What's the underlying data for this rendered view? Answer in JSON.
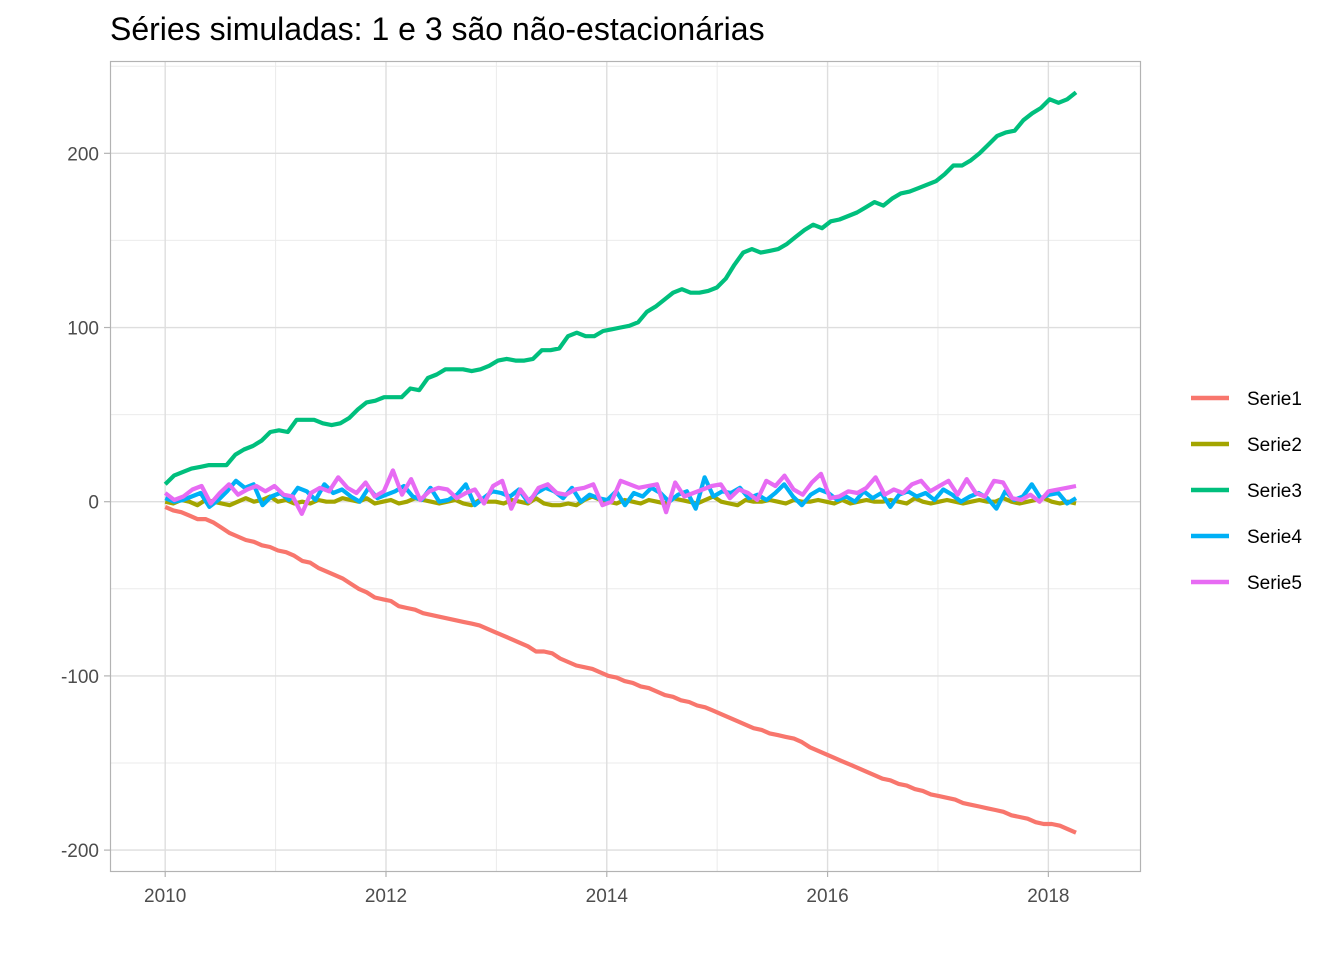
{
  "chart_data": {
    "type": "line",
    "title": "Séries simuladas: 1 e 3 são não-estacionárias",
    "xlabel": "",
    "ylabel": "",
    "x_range": [
      2010.0,
      2018.25
    ],
    "xlim": [
      2009.5,
      2018.83
    ],
    "ylim": [
      -212,
      253
    ],
    "x_ticks": [
      2010,
      2012,
      2014,
      2016,
      2018
    ],
    "x_tick_labels": [
      "2010",
      "2012",
      "2014",
      "2016",
      "2018"
    ],
    "y_ticks": [
      -200,
      -100,
      0,
      100,
      200
    ],
    "y_tick_labels": [
      "-200",
      "-100",
      "0",
      "100",
      "200"
    ],
    "grid": true,
    "legend_position": "right",
    "series": [
      {
        "name": "Serie1",
        "color": "#F8766D",
        "values": [
          -3,
          -5,
          -6,
          -8,
          -10,
          -10,
          -12,
          -15,
          -18,
          -20,
          -22,
          -23,
          -25,
          -26,
          -28,
          -29,
          -31,
          -34,
          -35,
          -38,
          -40,
          -42,
          -44,
          -47,
          -50,
          -52,
          -55,
          -56,
          -57,
          -60,
          -61,
          -62,
          -64,
          -65,
          -66,
          -67,
          -68,
          -69,
          -70,
          -71,
          -73,
          -75,
          -77,
          -79,
          -81,
          -83,
          -86,
          -86,
          -87,
          -90,
          -92,
          -94,
          -95,
          -96,
          -98,
          -100,
          -101,
          -103,
          -104,
          -106,
          -107,
          -109,
          -111,
          -112,
          -114,
          -115,
          -117,
          -118,
          -120,
          -122,
          -124,
          -126,
          -128,
          -130,
          -131,
          -133,
          -134,
          -135,
          -136,
          -138,
          -141,
          -143,
          -145,
          -147,
          -149,
          -151,
          -153,
          -155,
          -157,
          -159,
          -160,
          -162,
          -163,
          -165,
          -166,
          -168,
          -169,
          -170,
          -171,
          -173,
          -174,
          -175,
          -176,
          -177,
          -178,
          -180,
          -181,
          -182,
          -184,
          -185,
          -185,
          -186,
          -188,
          -190
        ]
      },
      {
        "name": "Serie2",
        "color": "#A3A500",
        "values": [
          0,
          -1,
          1,
          0,
          -2,
          1,
          0,
          -1,
          -2,
          0,
          2,
          0,
          1,
          3,
          0,
          1,
          -1,
          0,
          -1,
          1,
          0,
          0,
          2,
          1,
          0,
          2,
          -1,
          0,
          1,
          -1,
          0,
          2,
          1,
          0,
          -1,
          0,
          1,
          -1,
          -2,
          1,
          0,
          0,
          -1,
          1,
          0,
          -1,
          2,
          -1,
          -2,
          -2,
          -1,
          -2,
          1,
          3,
          1,
          0,
          -1,
          1,
          0,
          -1,
          1,
          0,
          -1,
          2,
          1,
          0,
          -1,
          1,
          3,
          0,
          -1,
          -2,
          1,
          0,
          0,
          1,
          0,
          -1,
          1,
          0,
          0,
          1,
          0,
          -1,
          1,
          -1,
          0,
          1,
          0,
          0,
          1,
          0,
          -1,
          2,
          0,
          -1,
          0,
          1,
          0,
          -1,
          0,
          1,
          0,
          0,
          2,
          0,
          -1,
          0,
          1,
          2,
          0,
          -1,
          0,
          -1
        ]
      },
      {
        "name": "Serie3",
        "color": "#00BF7D",
        "values": [
          10,
          15,
          17,
          19,
          20,
          21,
          21,
          21,
          27,
          30,
          32,
          35,
          40,
          41,
          40,
          47,
          47,
          47,
          45,
          44,
          45,
          48,
          53,
          57,
          58,
          60,
          60,
          60,
          65,
          64,
          71,
          73,
          76,
          76,
          76,
          75,
          76,
          78,
          81,
          82,
          81,
          81,
          82,
          87,
          87,
          88,
          95,
          97,
          95,
          95,
          98,
          99,
          100,
          101,
          103,
          109,
          112,
          116,
          120,
          122,
          120,
          120,
          121,
          123,
          128,
          136,
          143,
          145,
          143,
          144,
          145,
          148,
          152,
          156,
          159,
          157,
          161,
          162,
          164,
          166,
          169,
          172,
          170,
          174,
          177,
          178,
          180,
          182,
          184,
          188,
          193,
          193,
          196,
          200,
          205,
          210,
          212,
          213,
          219,
          223,
          226,
          231,
          229,
          231,
          235
        ]
      },
      {
        "name": "Serie4",
        "color": "#00B0F6",
        "values": [
          2,
          0,
          1,
          3,
          5,
          -3,
          1,
          6,
          12,
          8,
          10,
          -2,
          3,
          5,
          1,
          8,
          6,
          1,
          10,
          5,
          7,
          3,
          0,
          8,
          2,
          4,
          6,
          9,
          3,
          1,
          8,
          0,
          1,
          4,
          10,
          -2,
          2,
          6,
          5,
          3,
          7,
          0,
          5,
          8,
          6,
          2,
          8,
          0,
          4,
          2,
          1,
          6,
          -2,
          5,
          3,
          8,
          5,
          0,
          4,
          6,
          -4,
          14,
          3,
          6,
          5,
          8,
          2,
          4,
          1,
          5,
          10,
          3,
          -2,
          4,
          7,
          5,
          1,
          3,
          0,
          6,
          2,
          5,
          -3,
          4,
          6,
          3,
          5,
          1,
          7,
          4,
          0,
          3,
          5,
          2,
          -4,
          6,
          1,
          3,
          10,
          2,
          4,
          5,
          -1,
          2
        ]
      },
      {
        "name": "Serie5",
        "color": "#E76BF3",
        "values": [
          5,
          1,
          3,
          7,
          9,
          -1,
          5,
          10,
          4,
          7,
          9,
          6,
          9,
          4,
          3,
          -7,
          5,
          8,
          6,
          14,
          8,
          5,
          11,
          3,
          6,
          18,
          4,
          13,
          1,
          6,
          8,
          7,
          2,
          5,
          7,
          -1,
          9,
          12,
          -4,
          7,
          0,
          8,
          10,
          5,
          4,
          7,
          8,
          10,
          -2,
          0,
          12,
          10,
          8,
          9,
          10,
          -6,
          11,
          3,
          5,
          7,
          9,
          10,
          2,
          7,
          5,
          1,
          12,
          9,
          15,
          7,
          4,
          11,
          16,
          2,
          3,
          6,
          5,
          8,
          14,
          4,
          7,
          5,
          10,
          12,
          6,
          9,
          12,
          4,
          13,
          5,
          3,
          12,
          11,
          2,
          1,
          4,
          0,
          6,
          7,
          8,
          9
        ]
      }
    ]
  }
}
